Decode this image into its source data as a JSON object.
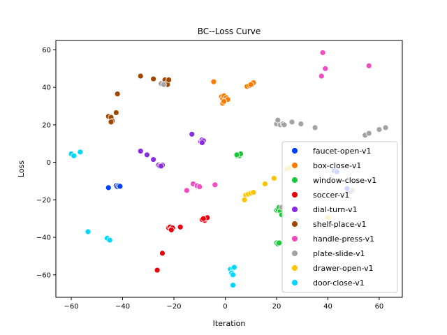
{
  "chart_data": {
    "type": "scatter",
    "title": "BC--Loss Curve",
    "xlabel": "Iteration",
    "ylabel": "Loss",
    "xlim": [
      -66,
      69
    ],
    "ylim": [
      -72,
      65
    ],
    "xticks": [
      -60,
      -40,
      -20,
      0,
      20,
      40,
      60
    ],
    "yticks": [
      -60,
      -40,
      -20,
      0,
      20,
      40,
      60
    ],
    "grid": false,
    "legend_position": "lower-right",
    "series": [
      {
        "name": "faucet-open-v1",
        "color": "#023eff",
        "points": [
          [
            -45.5,
            -13.5
          ],
          [
            -42.5,
            -12.5
          ],
          [
            -42,
            -13
          ],
          [
            -41.5,
            -12.5
          ],
          [
            -41,
            -12.8
          ],
          [
            42.5,
            -4.5
          ],
          [
            43.5,
            -5
          ],
          [
            48,
            -14.5
          ],
          [
            49,
            -15.5
          ],
          [
            47.5,
            -14
          ]
        ]
      },
      {
        "name": "box-close-v1",
        "color": "#ff7c00",
        "points": [
          [
            -4.5,
            43
          ],
          [
            -1.5,
            35
          ],
          [
            -1,
            34
          ],
          [
            -0.5,
            35.5
          ],
          [
            0,
            33
          ],
          [
            0.5,
            34.5
          ],
          [
            -1,
            31.5
          ],
          [
            1,
            33.5
          ],
          [
            -0.5,
            32.5
          ],
          [
            8.5,
            40.5
          ],
          [
            9.5,
            41
          ],
          [
            10.5,
            41.5
          ],
          [
            11,
            42.5
          ],
          [
            10,
            41.5
          ]
        ]
      },
      {
        "name": "window-close-v1",
        "color": "#1ac938",
        "points": [
          [
            4.5,
            3.5
          ],
          [
            5,
            4
          ],
          [
            5.5,
            3.5
          ],
          [
            6,
            4.5
          ],
          [
            4.5,
            4
          ],
          [
            20,
            -25.5
          ],
          [
            20.5,
            -25
          ],
          [
            21,
            -24
          ],
          [
            21.5,
            -26
          ],
          [
            22,
            -28
          ],
          [
            20,
            -43
          ],
          [
            20.5,
            -43.5
          ],
          [
            21,
            -43
          ]
        ]
      },
      {
        "name": "soccer-v1",
        "color": "#e8000b",
        "points": [
          [
            -22,
            -35
          ],
          [
            -21.5,
            -34.5
          ],
          [
            -21,
            -35.5
          ],
          [
            -20.5,
            -35
          ],
          [
            -21,
            -36
          ],
          [
            -17.5,
            -34.5
          ],
          [
            -9,
            -30.5
          ],
          [
            -8,
            -31
          ],
          [
            -7.5,
            -30
          ],
          [
            -7,
            -29.5
          ],
          [
            -8.5,
            -30
          ],
          [
            -24.5,
            -48.5
          ],
          [
            -26.5,
            -57.5
          ]
        ]
      },
      {
        "name": "dial-turn-v1",
        "color": "#8b2be2",
        "points": [
          [
            -13,
            15
          ],
          [
            -9.5,
            11
          ],
          [
            -9,
            12
          ],
          [
            -8.5,
            11.5
          ],
          [
            -9,
            10.5
          ],
          [
            -33,
            6
          ],
          [
            -30.5,
            4
          ],
          [
            -28,
            1.5
          ],
          [
            -26,
            -1.5
          ],
          [
            -25.5,
            -2
          ],
          [
            -24.5,
            -1.5
          ],
          [
            -25,
            -2
          ]
        ]
      },
      {
        "name": "shelf-place-v1",
        "color": "#9f4800",
        "points": [
          [
            -33,
            46
          ],
          [
            -28,
            44.5
          ],
          [
            -23.5,
            44
          ],
          [
            -23,
            42
          ],
          [
            -22.5,
            41.5
          ],
          [
            -22,
            44
          ],
          [
            -24,
            41.5
          ],
          [
            -42,
            36.5
          ],
          [
            -42.5,
            26.5
          ],
          [
            -45.5,
            24.5
          ],
          [
            -44.5,
            24
          ],
          [
            -44,
            22
          ],
          [
            -44.5,
            21.5
          ]
        ]
      },
      {
        "name": "handle-press-v1",
        "color": "#f14cc1",
        "points": [
          [
            38,
            58.5
          ],
          [
            39,
            50
          ],
          [
            56,
            51.5
          ],
          [
            37.5,
            46
          ],
          [
            -12.5,
            -11.5
          ],
          [
            -11,
            -12.5
          ],
          [
            -10,
            -13
          ],
          [
            -4,
            -12
          ],
          [
            -15,
            -15
          ]
        ]
      },
      {
        "name": "plate-slide-v1",
        "color": "#a3a3a3",
        "points": [
          [
            -25,
            42
          ],
          [
            -24,
            41.5
          ],
          [
            20,
            20.5
          ],
          [
            20.5,
            22.5
          ],
          [
            21.5,
            20
          ],
          [
            22.5,
            20.5
          ],
          [
            23,
            20
          ],
          [
            26,
            21.5
          ],
          [
            29.5,
            20.5
          ],
          [
            35,
            18.5
          ],
          [
            54.5,
            14.5
          ],
          [
            56,
            15.5
          ],
          [
            60,
            17.5
          ],
          [
            62.5,
            18.5
          ],
          [
            49.5,
            -15
          ],
          [
            28,
            -31
          ],
          [
            22,
            -24
          ]
        ]
      },
      {
        "name": "drawer-open-v1",
        "color": "#ffc400",
        "points": [
          [
            24,
            -3.5
          ],
          [
            25,
            -3
          ],
          [
            26.5,
            -1.5
          ],
          [
            15.5,
            -11.5
          ],
          [
            19,
            -8.5
          ],
          [
            8,
            -17.5
          ],
          [
            9,
            -17
          ],
          [
            10,
            -16.5
          ],
          [
            11,
            -16
          ],
          [
            7.5,
            -20
          ],
          [
            40,
            -29.5
          ]
        ]
      },
      {
        "name": "door-close-v1",
        "color": "#00d7ff",
        "points": [
          [
            -60,
            4.5
          ],
          [
            -59,
            3.5
          ],
          [
            -56.5,
            5.5
          ],
          [
            -53.5,
            -37
          ],
          [
            -46,
            -40.5
          ],
          [
            -45,
            -41.5
          ],
          [
            2,
            -57
          ],
          [
            3,
            -56.5
          ],
          [
            3.5,
            -56
          ],
          [
            2.5,
            -59
          ],
          [
            3,
            -60
          ],
          [
            3,
            -65.5
          ]
        ]
      }
    ]
  }
}
